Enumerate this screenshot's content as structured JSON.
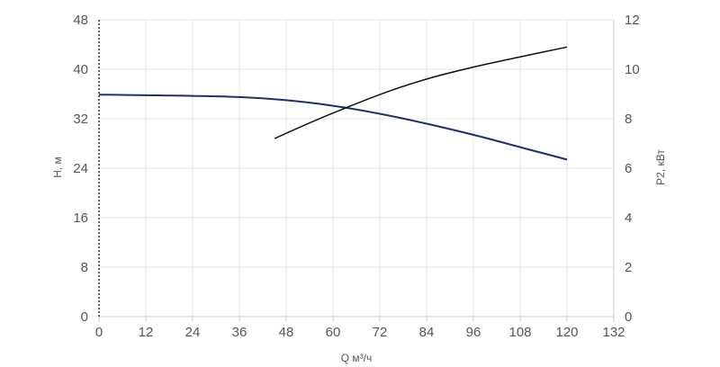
{
  "chart_data": {
    "type": "line",
    "xlabel": "Q м³/ч",
    "ylabel_left": "H, м",
    "ylabel_right": "P2, кВт",
    "x_ticks": [
      "0",
      "12",
      "24",
      "36",
      "48",
      "60",
      "72",
      "84",
      "96",
      "108",
      "120",
      "132"
    ],
    "y_left_ticks": [
      "0",
      "8",
      "16",
      "24",
      "32",
      "40",
      "48"
    ],
    "y_right_ticks": [
      "0",
      "2",
      "4",
      "6",
      "8",
      "10",
      "12"
    ],
    "xlim": [
      0,
      132
    ],
    "ylim_left": [
      0,
      48
    ],
    "ylim_right": [
      0,
      12
    ],
    "grid": true,
    "series": [
      {
        "axis": "left",
        "color": "#1f2f6b",
        "x": [
          0,
          12,
          24,
          36,
          48,
          60,
          72,
          84,
          96,
          108,
          120
        ],
        "y": [
          35.9,
          35.8,
          35.7,
          35.5,
          35.0,
          34.1,
          32.8,
          31.2,
          29.4,
          27.4,
          25.4
        ]
      },
      {
        "axis": "right",
        "color": "#111111",
        "x": [
          45,
          55,
          65,
          75,
          85,
          95,
          105,
          120
        ],
        "y": [
          7.2,
          7.9,
          8.55,
          9.15,
          9.65,
          10.05,
          10.4,
          10.9
        ]
      }
    ]
  }
}
